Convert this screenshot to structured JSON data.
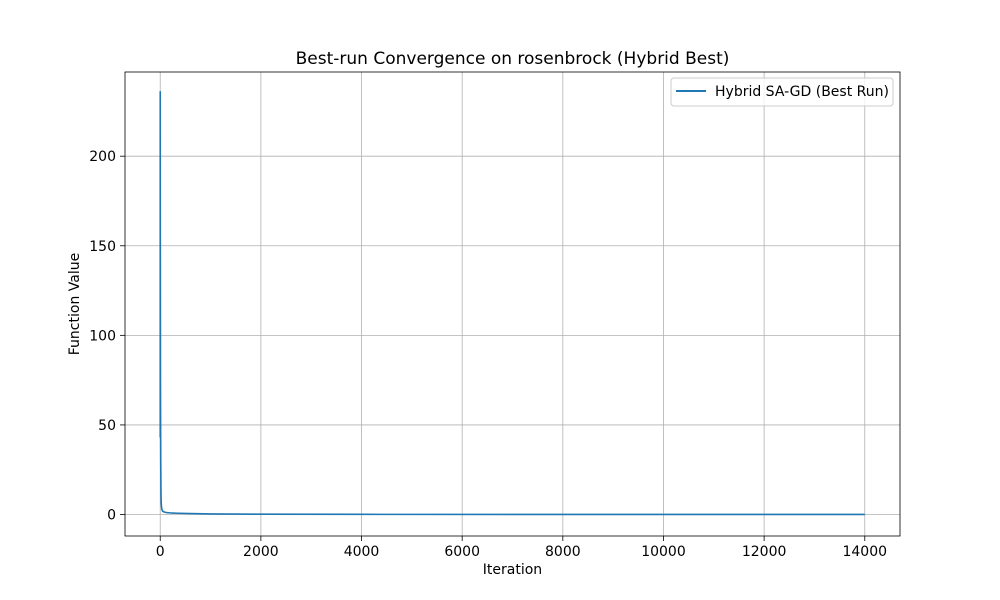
{
  "chart_data": {
    "type": "line",
    "title": "Best-run Convergence on rosenbrock (Hybrid Best)",
    "xlabel": "Iteration",
    "ylabel": "Function Value",
    "xlim": [
      -700,
      14700
    ],
    "ylim": [
      -12,
      247
    ],
    "xticks": [
      0,
      2000,
      4000,
      6000,
      8000,
      10000,
      12000,
      14000
    ],
    "xtick_labels": [
      "0",
      "2000",
      "4000",
      "6000",
      "8000",
      "10000",
      "12000",
      "14000"
    ],
    "yticks": [
      0,
      50,
      100,
      150,
      200
    ],
    "ytick_labels": [
      "0",
      "50",
      "100",
      "150",
      "200"
    ],
    "grid": true,
    "legend_position": "top-right",
    "series": [
      {
        "name": "Hybrid SA-GD (Best Run)",
        "color": "#1f77b4",
        "x": [
          0,
          0,
          2,
          5,
          10,
          15,
          20,
          30,
          50,
          80,
          120,
          200,
          350,
          600,
          1000,
          2000,
          4000,
          7000,
          10000,
          14000
        ],
        "y": [
          43,
          236,
          150,
          70,
          30,
          12,
          6,
          3,
          1.8,
          1.4,
          1.1,
          0.9,
          0.7,
          0.5,
          0.3,
          0.15,
          0.08,
          0.04,
          0.02,
          0.01
        ]
      }
    ]
  }
}
